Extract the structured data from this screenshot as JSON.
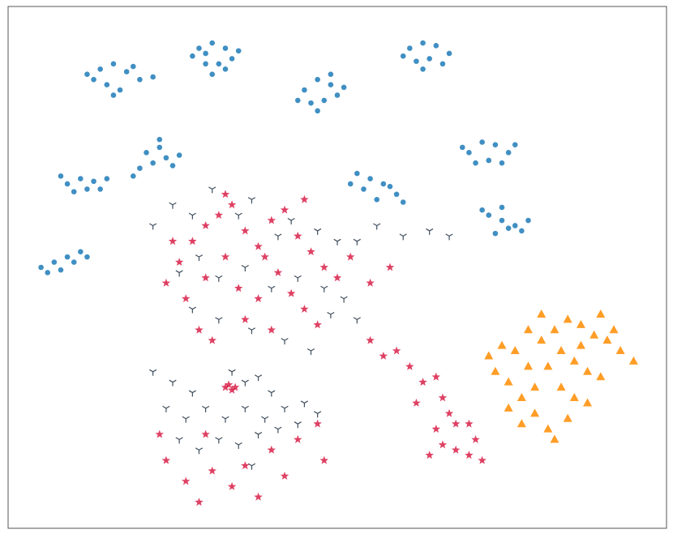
{
  "chart_data": {
    "type": "scatter",
    "xlim": [
      0,
      100
    ],
    "ylim": [
      0,
      100
    ],
    "series": [
      {
        "marker": "circle",
        "color": "#1f7bb8",
        "x": [
          12,
          14,
          16,
          18,
          20,
          15,
          17,
          13,
          19,
          22,
          16,
          29,
          31,
          33,
          34,
          32,
          30,
          28,
          33,
          31,
          35,
          30,
          45,
          47,
          49,
          50,
          48,
          46,
          51,
          44,
          47,
          49,
          61,
          63,
          65,
          67,
          64,
          62,
          66,
          60,
          63,
          70,
          72,
          74,
          76,
          73,
          71,
          75,
          69,
          77,
          21,
          23,
          24,
          22,
          20,
          25,
          19,
          23,
          26,
          9,
          11,
          13,
          12,
          10,
          14,
          8,
          15,
          5,
          7,
          9,
          10,
          8,
          6,
          11,
          12,
          53,
          55,
          57,
          59,
          58,
          54,
          56,
          60,
          52,
          73,
          75,
          77,
          78,
          76,
          74,
          79,
          72,
          75
        ],
        "y": [
          87,
          88,
          89,
          87.5,
          86,
          85,
          84,
          86,
          88.5,
          86.5,
          83,
          92,
          93,
          92,
          90,
          89,
          89,
          90.5,
          88,
          87,
          91.5,
          91,
          84,
          86,
          85,
          83,
          82,
          81.5,
          84.5,
          82,
          80,
          87,
          92,
          93,
          92.5,
          91,
          90,
          89.5,
          89,
          90.5,
          88,
          72,
          74,
          73.5,
          72,
          70.5,
          70,
          70,
          73,
          73.5,
          72,
          73,
          71,
          70,
          69,
          69.5,
          67.5,
          74.5,
          71.5,
          66,
          67,
          66.5,
          65,
          64.5,
          65,
          67.5,
          67,
          50,
          51,
          52,
          51,
          49.5,
          49,
          53,
          52,
          68,
          67,
          66,
          64,
          65.5,
          65,
          63,
          62.5,
          66,
          60,
          59,
          58,
          57,
          57.5,
          56.5,
          59,
          61,
          61.5
        ]
      },
      {
        "marker": "tri_down",
        "color": "#2b3b4b",
        "x": [
          22,
          25,
          28,
          31,
          35,
          37,
          41,
          43,
          47,
          50,
          53,
          56,
          60,
          64,
          67,
          26,
          29,
          32,
          36,
          40,
          44,
          48,
          51,
          53,
          49,
          28,
          32,
          37,
          42,
          46,
          34,
          36,
          38,
          22,
          25,
          28,
          24,
          27,
          30,
          33,
          36,
          39,
          42,
          45,
          26,
          29,
          32,
          35,
          38,
          41,
          44,
          47,
          37,
          40
        ],
        "y": [
          58,
          62,
          60,
          65,
          60,
          63,
          56,
          59,
          57,
          55,
          55,
          58,
          56,
          57,
          56,
          49,
          52,
          48,
          50,
          46,
          48,
          46,
          44,
          40,
          41,
          42,
          40,
          38,
          36,
          34,
          30,
          28,
          29,
          30,
          28,
          26,
          23,
          21,
          23,
          21,
          23,
          21,
          23,
          24,
          17,
          15,
          17,
          16,
          18,
          19,
          20,
          22,
          12,
          26
        ]
      },
      {
        "marker": "star",
        "color": "#d6113c",
        "x": [
          24,
          26,
          28,
          30,
          32,
          34,
          36,
          38,
          40,
          42,
          44,
          46,
          48,
          50,
          52,
          55,
          58,
          27,
          30,
          33,
          35,
          38,
          41,
          43,
          45,
          47,
          29,
          31,
          36,
          40,
          33,
          45,
          25,
          39,
          33,
          34,
          33.5,
          34.5,
          55,
          57,
          59,
          61,
          63,
          65,
          66,
          67,
          68,
          65,
          66,
          68,
          70,
          71,
          72,
          64,
          62,
          70,
          24,
          27,
          29,
          31,
          34,
          36,
          38,
          40,
          42,
          44,
          47,
          48,
          30,
          23
        ],
        "y": [
          47,
          51,
          55,
          58,
          60,
          62,
          57,
          54,
          59,
          61,
          56,
          53,
          50,
          48,
          52,
          47,
          50,
          44,
          48,
          52,
          46,
          44,
          49,
          45,
          42,
          39,
          38,
          36,
          40,
          38,
          64,
          63,
          55,
          52,
          27,
          26.5,
          27.5,
          27,
          36,
          33,
          34,
          31,
          28,
          29,
          25,
          22,
          20,
          19,
          16,
          15,
          14,
          17,
          13,
          14,
          24,
          20,
          13,
          9,
          5,
          11,
          8,
          12,
          6,
          15,
          10,
          17,
          20,
          13,
          18,
          18
        ]
      },
      {
        "marker": "triangle",
        "color": "#ff8c00",
        "x": [
          73,
          75,
          77,
          79,
          81,
          83,
          85,
          87,
          89,
          91,
          93,
          95,
          84,
          86,
          88,
          90,
          82,
          80,
          78,
          76,
          78,
          80,
          82,
          84,
          86,
          88,
          85,
          83,
          90,
          92,
          74,
          76,
          87,
          81,
          79
        ],
        "y": [
          33,
          35,
          34,
          31,
          36,
          38,
          40,
          39,
          37,
          36,
          34,
          32,
          34,
          32,
          30,
          29,
          31,
          27,
          25,
          23,
          20,
          22,
          19,
          27,
          25,
          24,
          21,
          17,
          41,
          38,
          30,
          28,
          35,
          41,
          38
        ]
      }
    ]
  }
}
